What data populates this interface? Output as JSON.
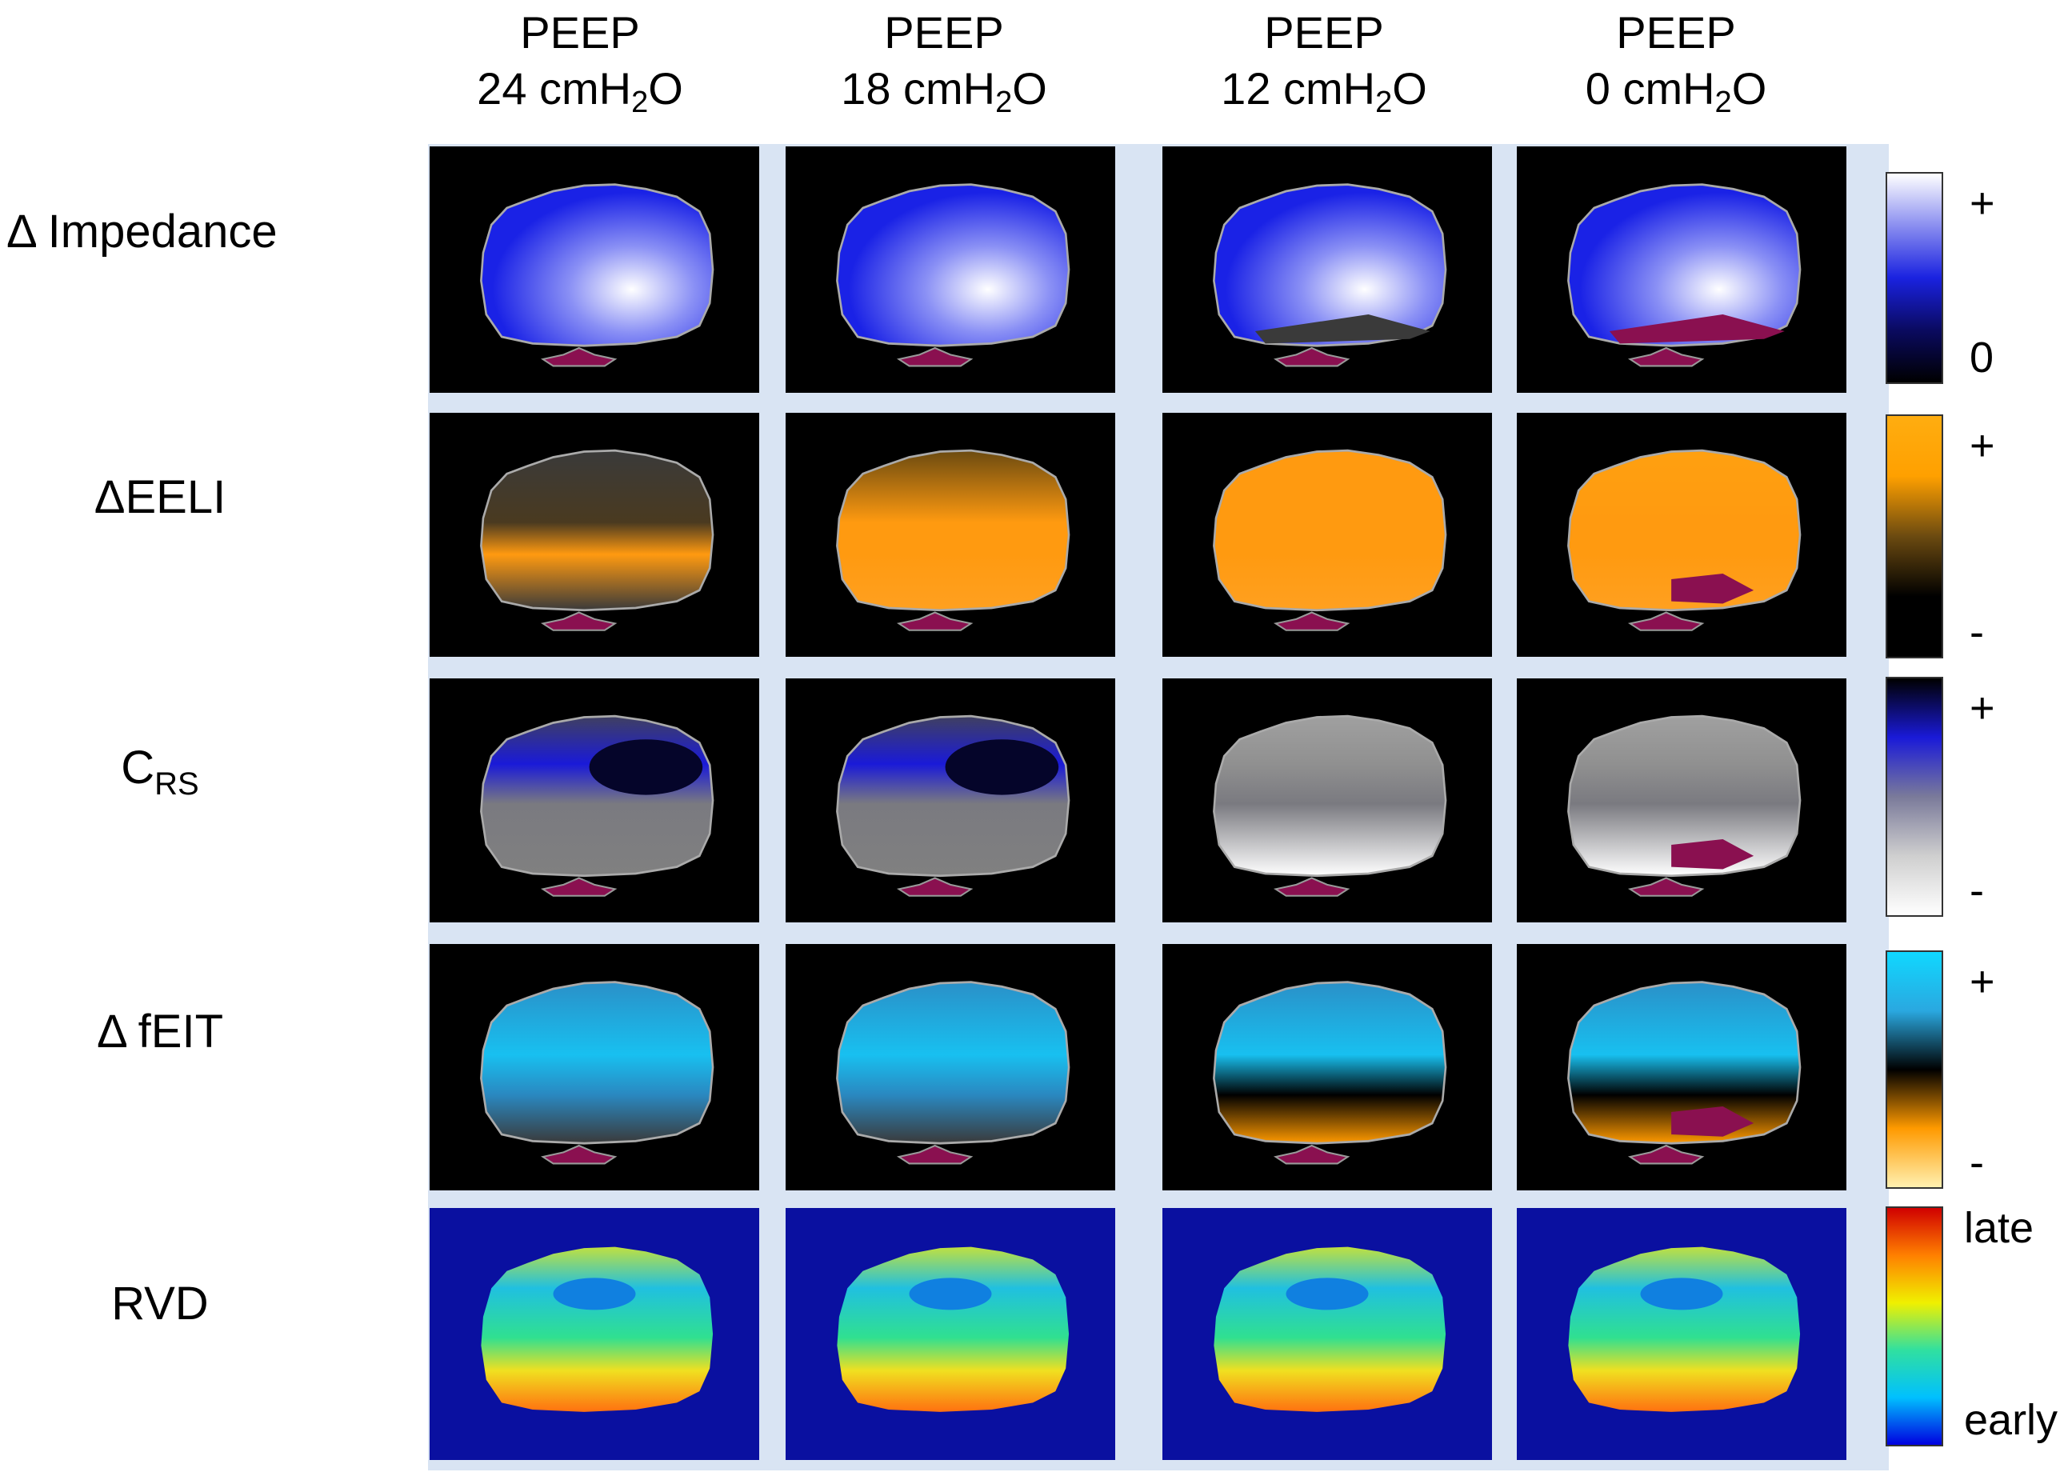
{
  "columns": [
    {
      "line1": "PEEP",
      "value": "24 cmH",
      "sub": "2",
      "tail": "O"
    },
    {
      "line1": "PEEP",
      "value": "18 cmH",
      "sub": "2",
      "tail": "O"
    },
    {
      "line1": "PEEP",
      "value": "12 cmH",
      "sub": "2",
      "tail": "O"
    },
    {
      "line1": "PEEP",
      "value": "0 cmH",
      "sub": "2",
      "tail": "O"
    }
  ],
  "rows": [
    {
      "label": "Δ Impedance",
      "sub": ""
    },
    {
      "label": "ΔEELI",
      "sub": ""
    },
    {
      "label": "C",
      "sub": "RS"
    },
    {
      "label": "Δ fEIT",
      "sub": ""
    },
    {
      "label": "RVD",
      "sub": ""
    }
  ],
  "colorbars": [
    {
      "top_label": "+",
      "bottom_label": "0",
      "colors": [
        "#ffffff",
        "#8a8ef0",
        "#1a22e0",
        "#0a0a60",
        "#000000"
      ]
    },
    {
      "top_label": "+",
      "bottom_label": "-",
      "colors": [
        "#ffad10",
        "#ffa000",
        "#6b4a10",
        "#000000",
        "#000000"
      ]
    },
    {
      "top_label": "+",
      "bottom_label": "-",
      "colors": [
        "#000000",
        "#1a1ad8",
        "#7a7a9a",
        "#cfcfcf",
        "#ffffff"
      ]
    },
    {
      "top_label": "+",
      "bottom_label": "-",
      "colors": [
        "#10d8ff",
        "#2aa8e0",
        "#000000",
        "#ff9a00",
        "#fff0b0"
      ]
    },
    {
      "top_label": "late",
      "bottom_label": "early",
      "colors": [
        "#d00000",
        "#ff8000",
        "#f0f000",
        "#30e0a0",
        "#00c0ff",
        "#0000e0"
      ]
    }
  ]
}
